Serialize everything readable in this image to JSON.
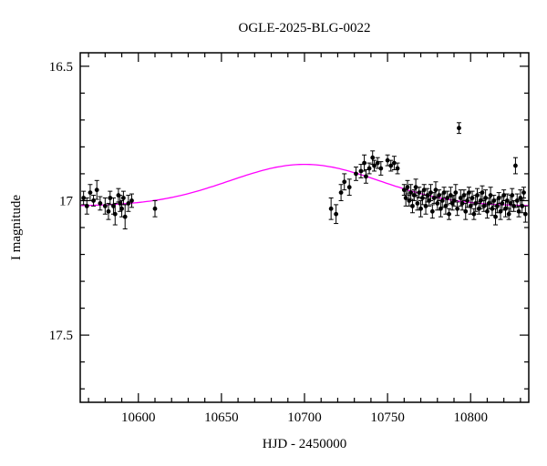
{
  "figure": {
    "background": "#ffffff"
  },
  "chart_data": {
    "type": "scatter",
    "title": "OGLE-2025-BLG-0022",
    "xlabel": "HJD - 2450000",
    "ylabel": "I magnitude",
    "xlim": [
      10565,
      10835
    ],
    "ylim": [
      16.45,
      17.75
    ],
    "y_inverted": true,
    "grid": false,
    "legend": "none",
    "xticks": [
      10600,
      10650,
      10700,
      10750,
      10800
    ],
    "yticks": [
      16.5,
      17,
      17.5
    ],
    "x_minor_step": 10,
    "x_major_step": 50,
    "y_minor_step": 0.1,
    "y_major_step": 0.5,
    "point_color": "#000000",
    "model": {
      "shape": "gaussian_bump",
      "baseline": 17.02,
      "amplitude": 0.155,
      "t0": 10700,
      "sigma": 45,
      "color": "#ff00ff"
    },
    "points": [
      [
        10567,
        16.99,
        0.025
      ],
      [
        10569,
        17.02,
        0.03
      ],
      [
        10571,
        16.97,
        0.03
      ],
      [
        10573,
        17.0,
        0.02
      ],
      [
        10575,
        16.96,
        0.035
      ],
      [
        10577,
        17.01,
        0.025
      ],
      [
        10580,
        17.02,
        0.03
      ],
      [
        10582,
        17.04,
        0.03
      ],
      [
        10583,
        16.99,
        0.025
      ],
      [
        10585,
        17.02,
        0.03
      ],
      [
        10586,
        17.05,
        0.04
      ],
      [
        10588,
        16.98,
        0.025
      ],
      [
        10589,
        17.01,
        0.03
      ],
      [
        10590,
        17.03,
        0.03
      ],
      [
        10591,
        16.99,
        0.025
      ],
      [
        10592,
        17.06,
        0.045
      ],
      [
        10594,
        17.01,
        0.03
      ],
      [
        10596,
        17.0,
        0.025
      ],
      [
        10610,
        17.03,
        0.03
      ],
      [
        10716,
        17.03,
        0.04
      ],
      [
        10719,
        17.05,
        0.035
      ],
      [
        10722,
        16.97,
        0.03
      ],
      [
        10724,
        16.93,
        0.03
      ],
      [
        10727,
        16.95,
        0.03
      ],
      [
        10731,
        16.9,
        0.025
      ],
      [
        10734,
        16.89,
        0.025
      ],
      [
        10736,
        16.86,
        0.03
      ],
      [
        10737,
        16.91,
        0.025
      ],
      [
        10739,
        16.88,
        0.02
      ],
      [
        10741,
        16.84,
        0.025
      ],
      [
        10742,
        16.87,
        0.02
      ],
      [
        10744,
        16.86,
        0.02
      ],
      [
        10746,
        16.88,
        0.025
      ],
      [
        10750,
        16.85,
        0.02
      ],
      [
        10752,
        16.87,
        0.02
      ],
      [
        10754,
        16.86,
        0.025
      ],
      [
        10756,
        16.88,
        0.02
      ],
      [
        10760,
        16.96,
        0.02
      ],
      [
        10761,
        16.99,
        0.03
      ],
      [
        10762,
        16.95,
        0.025
      ],
      [
        10763,
        17.0,
        0.02
      ],
      [
        10764,
        16.97,
        0.03
      ],
      [
        10765,
        17.02,
        0.025
      ],
      [
        10766,
        16.98,
        0.02
      ],
      [
        10767,
        16.95,
        0.03
      ],
      [
        10768,
        17.01,
        0.025
      ],
      [
        10769,
        16.97,
        0.02
      ],
      [
        10770,
        17.03,
        0.03
      ],
      [
        10771,
        16.99,
        0.025
      ],
      [
        10772,
        16.96,
        0.02
      ],
      [
        10773,
        17.02,
        0.03
      ],
      [
        10774,
        16.98,
        0.025
      ],
      [
        10775,
        17.0,
        0.02
      ],
      [
        10776,
        16.97,
        0.03
      ],
      [
        10777,
        17.04,
        0.025
      ],
      [
        10778,
        16.99,
        0.02
      ],
      [
        10779,
        16.96,
        0.03
      ],
      [
        10780,
        17.01,
        0.025
      ],
      [
        10781,
        16.98,
        0.02
      ],
      [
        10782,
        17.03,
        0.03
      ],
      [
        10783,
        17.0,
        0.025
      ],
      [
        10784,
        16.97,
        0.02
      ],
      [
        10785,
        17.02,
        0.03
      ],
      [
        10786,
        16.99,
        0.025
      ],
      [
        10787,
        17.05,
        0.02
      ],
      [
        10788,
        16.98,
        0.03
      ],
      [
        10789,
        17.01,
        0.025
      ],
      [
        10790,
        17.0,
        0.02
      ],
      [
        10791,
        16.97,
        0.03
      ],
      [
        10792,
        17.03,
        0.025
      ],
      [
        10793,
        16.73,
        0.02
      ],
      [
        10794,
        16.99,
        0.03
      ],
      [
        10795,
        17.01,
        0.025
      ],
      [
        10796,
        16.98,
        0.02
      ],
      [
        10797,
        17.04,
        0.03
      ],
      [
        10798,
        17.0,
        0.025
      ],
      [
        10799,
        16.97,
        0.02
      ],
      [
        10800,
        17.02,
        0.03
      ],
      [
        10801,
        16.99,
        0.025
      ],
      [
        10802,
        17.05,
        0.02
      ],
      [
        10803,
        17.01,
        0.03
      ],
      [
        10804,
        16.98,
        0.025
      ],
      [
        10805,
        17.03,
        0.02
      ],
      [
        10806,
        17.0,
        0.03
      ],
      [
        10807,
        16.97,
        0.025
      ],
      [
        10808,
        17.02,
        0.02
      ],
      [
        10809,
        16.99,
        0.03
      ],
      [
        10810,
        17.04,
        0.025
      ],
      [
        10811,
        17.01,
        0.02
      ],
      [
        10812,
        16.98,
        0.03
      ],
      [
        10813,
        17.03,
        0.025
      ],
      [
        10814,
        17.0,
        0.02
      ],
      [
        10815,
        17.06,
        0.03
      ],
      [
        10816,
        17.02,
        0.025
      ],
      [
        10817,
        16.99,
        0.02
      ],
      [
        10818,
        17.04,
        0.03
      ],
      [
        10819,
        17.01,
        0.025
      ],
      [
        10820,
        16.98,
        0.02
      ],
      [
        10821,
        17.03,
        0.03
      ],
      [
        10822,
        17.0,
        0.025
      ],
      [
        10823,
        17.05,
        0.02
      ],
      [
        10824,
        17.01,
        0.03
      ],
      [
        10825,
        16.98,
        0.025
      ],
      [
        10826,
        17.02,
        0.02
      ],
      [
        10827,
        16.87,
        0.03
      ],
      [
        10828,
        17.0,
        0.025
      ],
      [
        10829,
        17.04,
        0.02
      ],
      [
        10830,
        16.99,
        0.03
      ],
      [
        10831,
        17.02,
        0.025
      ],
      [
        10832,
        16.97,
        0.02
      ],
      [
        10833,
        17.05,
        0.03
      ]
    ]
  }
}
